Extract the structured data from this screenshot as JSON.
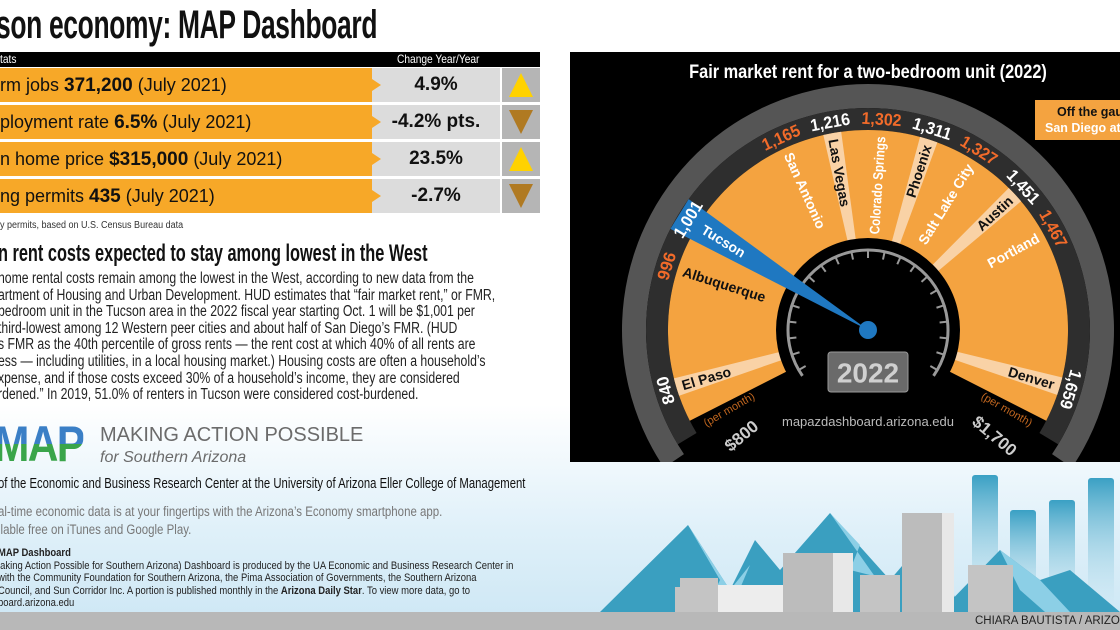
{
  "header": {
    "title": "son economy: MAP Dashboard"
  },
  "stats": {
    "col_label": "tats",
    "col_change": "Change Year/Year",
    "rows": [
      {
        "pre": "rm jobs ",
        "value": "371,200",
        "post": " (July 2021)",
        "change": "4.9%",
        "direction": "up"
      },
      {
        "pre": "ployment rate ",
        "value": "6.5%",
        "post": " (July 2021)",
        "change": "-4.2% pts.",
        "direction": "down"
      },
      {
        "pre": "n home price ",
        "value": "$315,000",
        "post": " (July 2021)",
        "change": "23.5%",
        "direction": "up"
      },
      {
        "pre": "ng permits ",
        "value": "435",
        "post": " (July 2021)",
        "change": "-2.7%",
        "direction": "down"
      }
    ],
    "footnote": "y permits, based on U.S. Census Bureau data",
    "colors": {
      "row": "#f7a828",
      "up": "#ffd200",
      "down": "#b07a22"
    }
  },
  "article": {
    "heading": "n rent costs expected to stay among lowest in the West",
    "lines": [
      "home rental costs remain among the lowest in the West, according to new data from the",
      "artment of Housing and Urban Development. HUD estimates that “fair market rent,” or FMR,",
      "bedroom unit in the Tucson area in the 2022 fiscal year starting Oct. 1 will be $1,001 per",
      "third-lowest among 12 Western peer cities and about half of San Diego’s FMR. (HUD",
      "s FMR as the 40th percentile of gross rents — the rent cost at which 40% of all rents are",
      "ess — including utilities, in a local housing market.) Housing costs are often a household’s",
      "xpense, and if those costs exceed 30% of a household’s income, they are considered",
      "rdened.” In 2019, 51.0% of renters in Tucson were considered cost-burdened."
    ]
  },
  "footer": {
    "logo": "MAP",
    "name": "MAKING ACTION POSSIBLE",
    "sub": "for Southern Arizona",
    "ebr": "of the Economic and Business Research Center at the University of Arizona Eller College of Management",
    "app1": "al-time economic data is at your fingertips with the Arizona’s Economy smartphone app.",
    "app2": "ilable free on iTunes and Google Play.",
    "about_heading": "MAP Dashboard",
    "about1": "laking Action Possible for Southern Arizona) Dashboard is produced by the UA Economic and Business Research Center in",
    "about2": " with the Community Foundation for Southern Arizona, the Pima Association of Governments, the Southern Arizona",
    "about3_pre": "Council, and Sun Corridor Inc. A portion is published monthly in the ",
    "about3_bold": "Arizona Daily Star",
    "about3_post": ". To view more data, go to",
    "about4": "board.arizona.edu",
    "credit": "CHIARA BAUTISTA / ARIZONA"
  },
  "chart_data": {
    "type": "gauge",
    "title": "Fair market rent for a two-bedroom unit (2022)",
    "range": [
      800,
      1700
    ],
    "min_label": "$800",
    "max_label": "$1,700",
    "unit_label": "(per month)",
    "year": "2022",
    "url": "mapazdashboard.arizona.edu",
    "off_gauge": {
      "line1": "Off the gaug",
      "line2": "San Diego at $"
    },
    "highlight": "Tucson",
    "colors": {
      "fan": "#f4a340",
      "wedge": "#f9d2a6",
      "highlight": "#1f78c1",
      "value_orange": "#f26b2a",
      "ring": "#555555"
    },
    "points": [
      {
        "city": "El Paso",
        "value": 840,
        "label": "840",
        "value_color": "white",
        "style": "light"
      },
      {
        "city": "Albuquerque",
        "value": 996,
        "label": "996",
        "value_color": "orange",
        "style": "dark-text"
      },
      {
        "city": "Tucson",
        "value": 1001,
        "label": "1,001",
        "value_color": "white",
        "style": "highlight"
      },
      {
        "city": "San Antonio",
        "value": 1165,
        "label": "1,165",
        "value_color": "orange",
        "style": "white-text"
      },
      {
        "city": "Las Vegas",
        "value": 1216,
        "label": "1,216",
        "value_color": "white",
        "style": "light"
      },
      {
        "city": "Colorado Springs",
        "value": 1302,
        "label": "1,302",
        "value_color": "orange",
        "style": "white-text"
      },
      {
        "city": "Phoenix",
        "value": 1311,
        "label": "1,311",
        "value_color": "white",
        "style": "light"
      },
      {
        "city": "Salt Lake City",
        "value": 1327,
        "label": "1,327",
        "value_color": "orange",
        "style": "white-text"
      },
      {
        "city": "Austin",
        "value": 1451,
        "label": "1,451",
        "value_color": "white",
        "style": "light"
      },
      {
        "city": "Portland",
        "value": 1467,
        "label": "1,467",
        "value_color": "orange",
        "style": "white-text"
      },
      {
        "city": "Denver",
        "value": 1659,
        "label": "1,659",
        "value_color": "white",
        "style": "light"
      }
    ]
  }
}
